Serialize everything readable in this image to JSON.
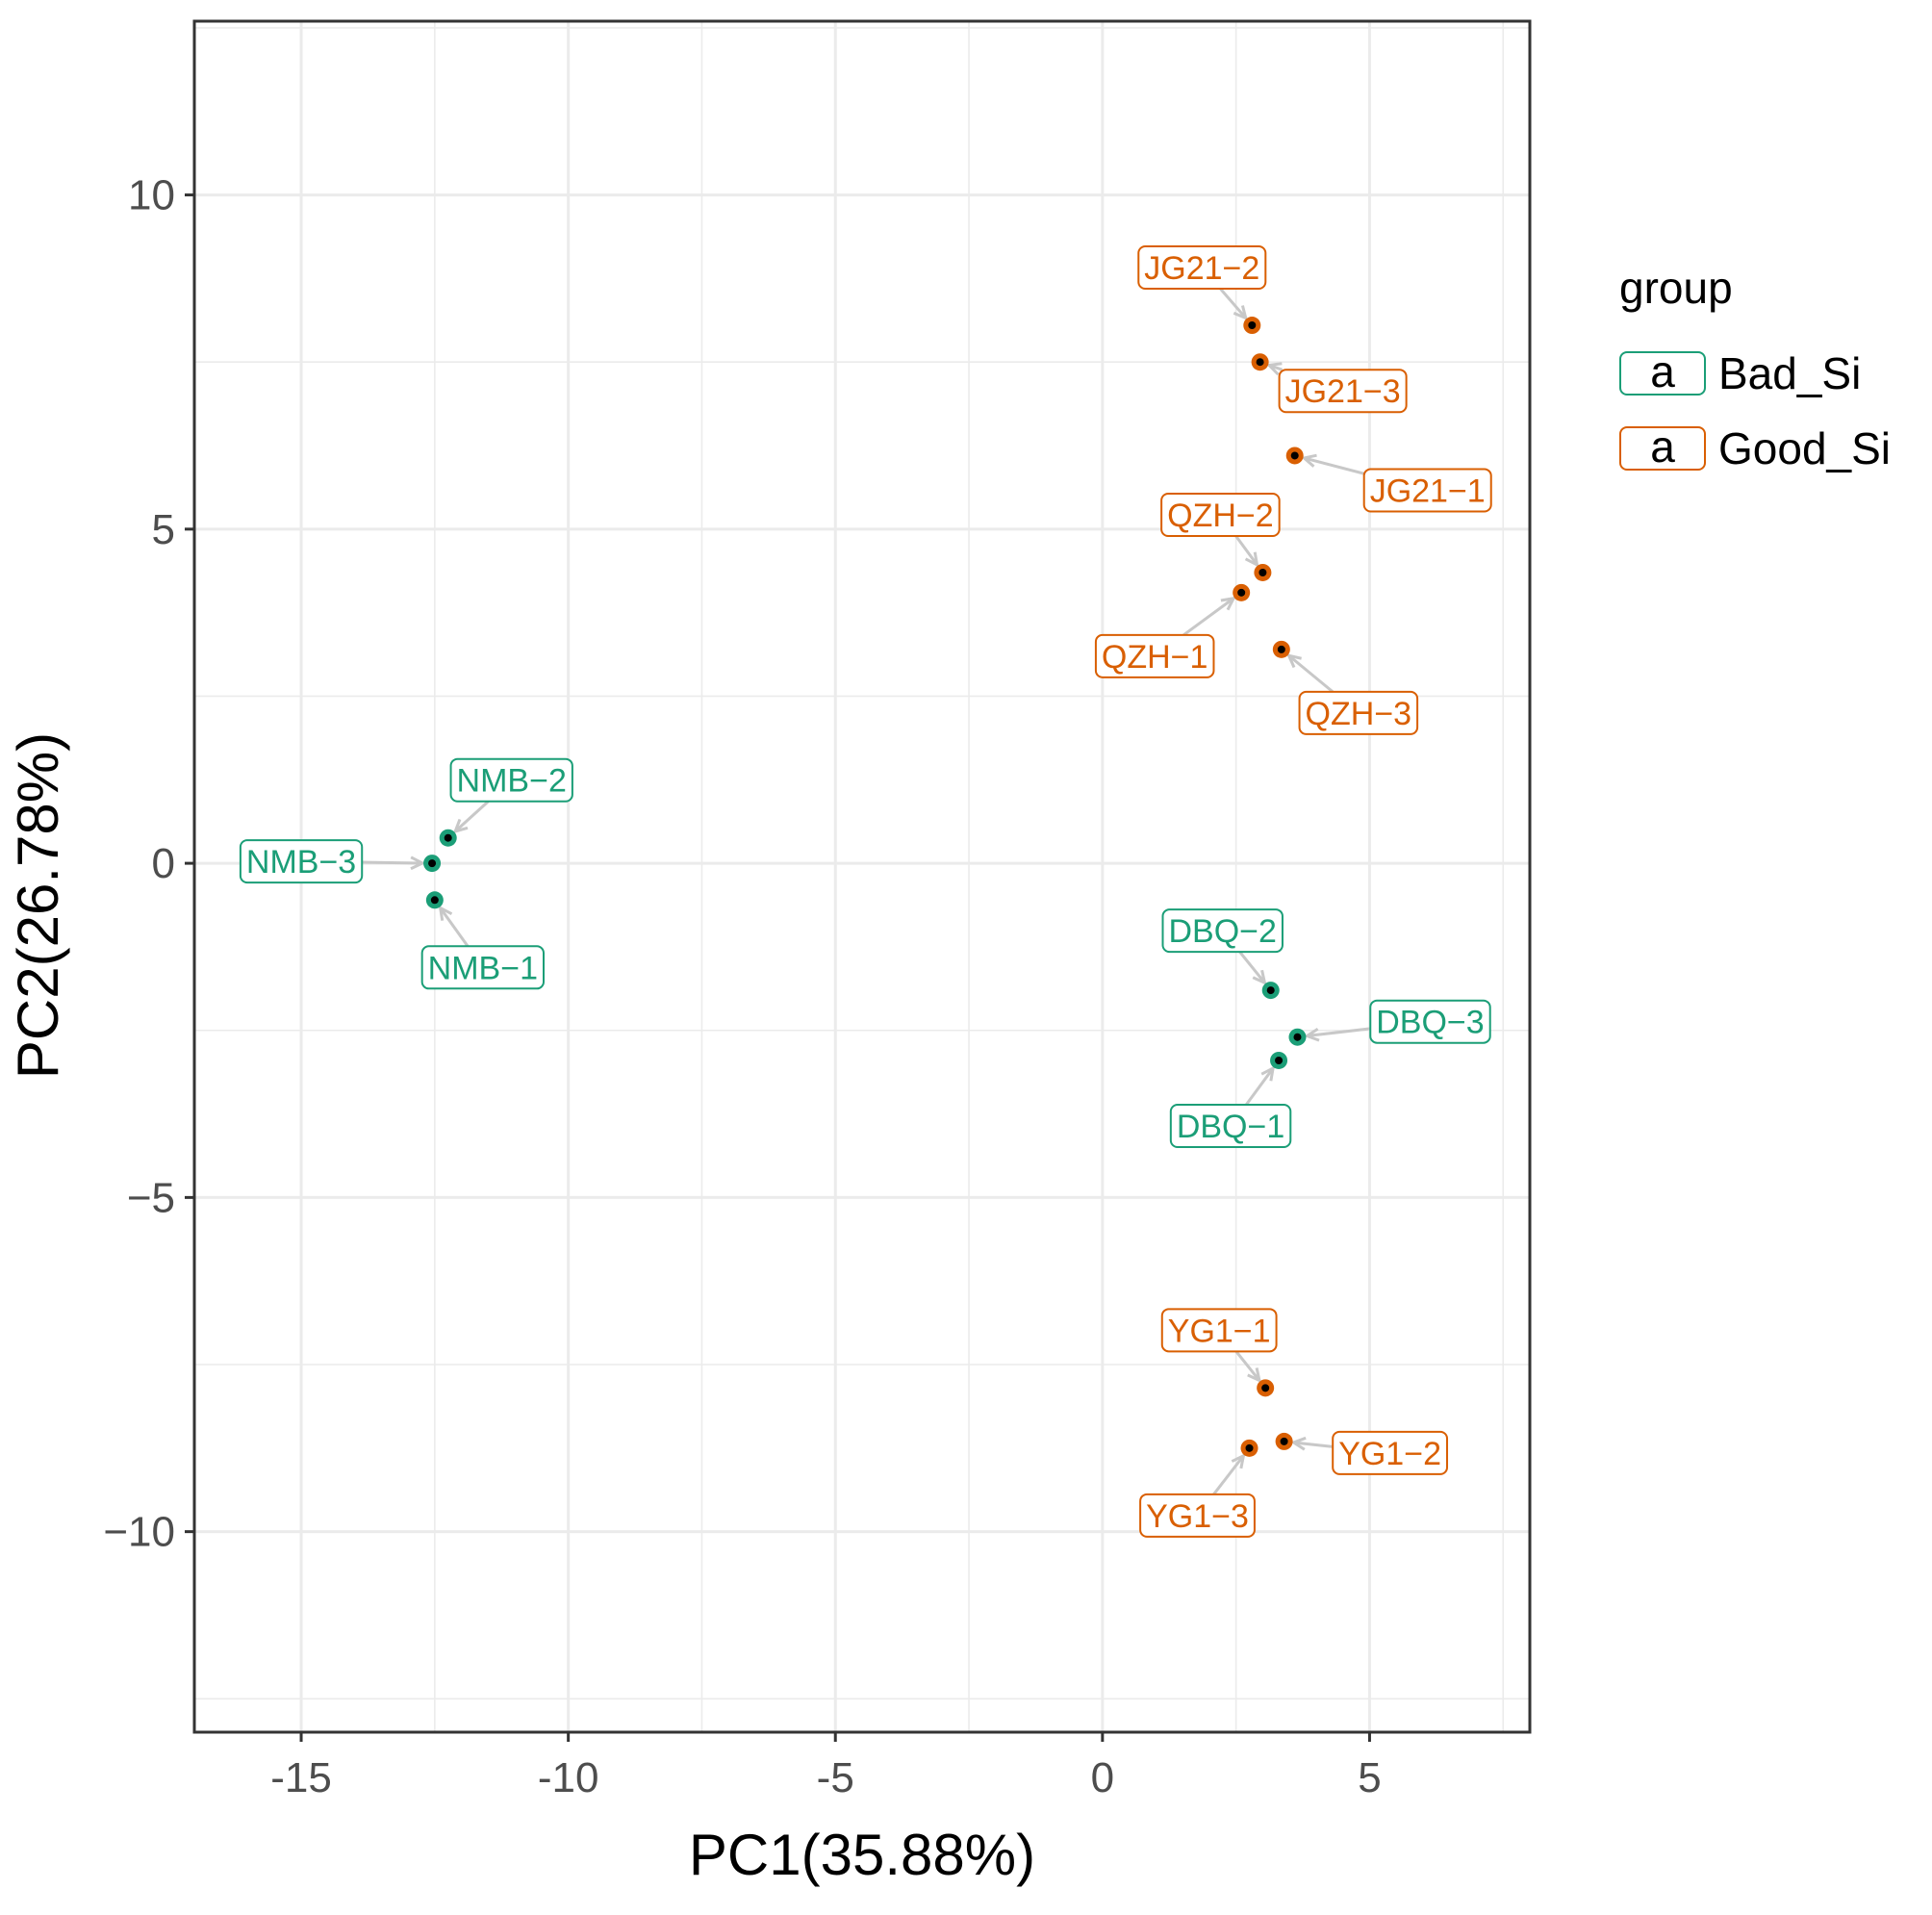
{
  "chart_data": {
    "type": "scatter",
    "title": "",
    "xlabel": "PC1(35.88%)",
    "ylabel": "PC2(26.78%)",
    "xlim": [
      -17,
      8
    ],
    "ylim": [
      -13,
      12.6
    ],
    "xticks": [
      -15,
      -10,
      -5,
      0,
      5
    ],
    "xtick_labels": [
      "-15",
      "-10",
      "-5",
      "0",
      "5"
    ],
    "yticks": [
      -10,
      -5,
      0,
      5,
      10
    ],
    "ytick_labels": [
      "−10",
      "−5",
      "0",
      "5",
      "10"
    ],
    "grid": true,
    "legend": {
      "title": "group",
      "position": "right",
      "key_glyph": "a",
      "entries": [
        {
          "name": "Bad_Si",
          "color": "#1b9e77"
        },
        {
          "name": "Good_Si",
          "color": "#d95f02"
        }
      ]
    },
    "series": [
      {
        "name": "Bad_Si",
        "color": "#1b9e77",
        "points": [
          {
            "label": "NMB−1",
            "x": -12.5,
            "y": -0.55
          },
          {
            "label": "NMB−2",
            "x": -12.25,
            "y": 0.38
          },
          {
            "label": "NMB−3",
            "x": -12.55,
            "y": 0.0
          },
          {
            "label": "DBQ−1",
            "x": 3.3,
            "y": -2.95
          },
          {
            "label": "DBQ−2",
            "x": 3.15,
            "y": -1.9
          },
          {
            "label": "DBQ−3",
            "x": 3.65,
            "y": -2.6
          }
        ]
      },
      {
        "name": "Good_Si",
        "color": "#d95f02",
        "points": [
          {
            "label": "JG21−1",
            "x": 3.6,
            "y": 6.1
          },
          {
            "label": "JG21−2",
            "x": 2.8,
            "y": 8.05
          },
          {
            "label": "JG21−3",
            "x": 2.95,
            "y": 7.5
          },
          {
            "label": "QZH−1",
            "x": 2.6,
            "y": 4.05
          },
          {
            "label": "QZH−2",
            "x": 3.0,
            "y": 4.35
          },
          {
            "label": "QZH−3",
            "x": 3.35,
            "y": 3.2
          },
          {
            "label": "YG1−1",
            "x": 3.05,
            "y": -7.85
          },
          {
            "label": "YG1−2",
            "x": 3.4,
            "y": -8.65
          },
          {
            "label": "YG1−3",
            "x": 2.75,
            "y": -8.75
          }
        ]
      }
    ]
  }
}
